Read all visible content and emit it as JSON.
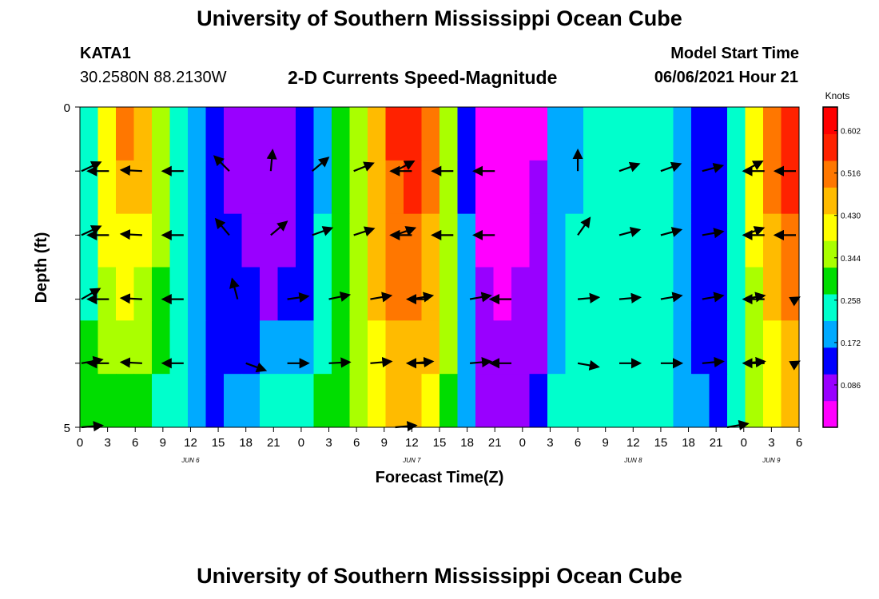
{
  "page": {
    "title_top": "University of Southern Mississippi Ocean Cube",
    "title_bottom": "University of Southern Mississippi Ocean Cube",
    "station_id": "KATA1",
    "station_coords": "30.2580N  88.2130W",
    "chart_heading": "2-D Currents Speed-Magnitude",
    "start_time_label": "Model Start Time",
    "start_time_value": "06/06/2021 Hour 21"
  },
  "chart_data": {
    "type": "heatmap",
    "title": "2-D Currents Speed-Magnitude",
    "xlabel": "Forecast Time(Z)",
    "ylabel": "Depth (ft)",
    "x_tick_labels": [
      "0",
      "3",
      "6",
      "9",
      "12",
      "15",
      "18",
      "21",
      "0",
      "3",
      "6",
      "9",
      "12",
      "15",
      "18",
      "21",
      "0",
      "3",
      "6",
      "9",
      "12",
      "15",
      "18",
      "21",
      "0",
      "3",
      "6"
    ],
    "day_labels": [
      {
        "label": "JUN 6",
        "index": 4
      },
      {
        "label": "JUN 7",
        "index": 12
      },
      {
        "label": "JUN 8",
        "index": 20
      },
      {
        "label": "JUN 9",
        "index": 25
      }
    ],
    "y_range": [
      0,
      5
    ],
    "y_tick_labels": [
      "0",
      "5"
    ],
    "colorbar": {
      "unit": "Knots",
      "ticks": [
        "0.086",
        "0.172",
        "0.258",
        "0.344",
        "0.430",
        "0.516",
        "0.602"
      ],
      "range": [
        0.0,
        0.65
      ],
      "colors": [
        "#ff00ff",
        "#9900ff",
        "#0000ff",
        "#00aaff",
        "#00ffcc",
        "#00dd00",
        "#aaff00",
        "#ffff00",
        "#ffbb00",
        "#ff7700",
        "#ff2200",
        "#ff0000"
      ]
    },
    "speed_rows": [
      [
        0.25,
        0.42,
        0.49,
        0.46,
        0.37,
        0.26,
        0.18,
        0.13,
        0.1,
        0.07,
        0.06,
        0.08,
        0.13,
        0.2,
        0.28,
        0.37,
        0.48,
        0.55,
        0.58,
        0.5,
        0.35,
        0.16,
        0.03,
        0.02,
        0.03,
        0.05,
        0.17,
        0.21,
        0.22,
        0.24,
        0.25,
        0.24,
        0.22,
        0.2,
        0.16,
        0.11,
        0.27,
        0.42,
        0.52,
        0.58
      ],
      [
        0.25,
        0.4,
        0.46,
        0.44,
        0.36,
        0.26,
        0.18,
        0.13,
        0.1,
        0.08,
        0.07,
        0.09,
        0.14,
        0.21,
        0.29,
        0.37,
        0.47,
        0.53,
        0.56,
        0.49,
        0.35,
        0.16,
        0.04,
        0.03,
        0.04,
        0.06,
        0.18,
        0.21,
        0.22,
        0.24,
        0.25,
        0.24,
        0.22,
        0.2,
        0.16,
        0.11,
        0.26,
        0.4,
        0.5,
        0.56
      ],
      [
        0.26,
        0.38,
        0.42,
        0.4,
        0.34,
        0.25,
        0.17,
        0.13,
        0.11,
        0.09,
        0.08,
        0.1,
        0.15,
        0.22,
        0.29,
        0.37,
        0.45,
        0.51,
        0.53,
        0.48,
        0.34,
        0.17,
        0.05,
        0.04,
        0.05,
        0.07,
        0.19,
        0.22,
        0.23,
        0.24,
        0.25,
        0.24,
        0.22,
        0.2,
        0.16,
        0.12,
        0.26,
        0.38,
        0.47,
        0.53
      ],
      [
        0.27,
        0.35,
        0.38,
        0.36,
        0.31,
        0.24,
        0.17,
        0.13,
        0.12,
        0.11,
        0.1,
        0.12,
        0.16,
        0.22,
        0.29,
        0.36,
        0.44,
        0.49,
        0.51,
        0.46,
        0.34,
        0.17,
        0.06,
        0.05,
        0.06,
        0.08,
        0.2,
        0.22,
        0.23,
        0.24,
        0.25,
        0.24,
        0.22,
        0.2,
        0.16,
        0.12,
        0.25,
        0.36,
        0.44,
        0.5
      ],
      [
        0.28,
        0.33,
        0.35,
        0.33,
        0.29,
        0.23,
        0.17,
        0.14,
        0.15,
        0.16,
        0.17,
        0.18,
        0.21,
        0.25,
        0.3,
        0.37,
        0.43,
        0.47,
        0.48,
        0.44,
        0.33,
        0.18,
        0.08,
        0.06,
        0.07,
        0.1,
        0.21,
        0.23,
        0.24,
        0.24,
        0.25,
        0.24,
        0.22,
        0.2,
        0.16,
        0.12,
        0.25,
        0.35,
        0.42,
        0.47
      ],
      [
        0.28,
        0.31,
        0.32,
        0.3,
        0.27,
        0.22,
        0.17,
        0.16,
        0.19,
        0.21,
        0.22,
        0.23,
        0.25,
        0.28,
        0.31,
        0.37,
        0.42,
        0.45,
        0.46,
        0.42,
        0.32,
        0.19,
        0.1,
        0.08,
        0.09,
        0.12,
        0.22,
        0.23,
        0.24,
        0.25,
        0.25,
        0.24,
        0.22,
        0.2,
        0.17,
        0.13,
        0.24,
        0.33,
        0.39,
        0.44
      ]
    ],
    "vectors": [
      {
        "t": 0,
        "d": 1,
        "angle": -25
      },
      {
        "t": 0.7,
        "d": 1.0,
        "angle": 180
      },
      {
        "t": 1.5,
        "d": 1.0,
        "angle": 183
      },
      {
        "t": 2.5,
        "d": 1.0,
        "angle": 180
      },
      {
        "t": 3.6,
        "d": 1.0,
        "angle": -135
      },
      {
        "t": 4.6,
        "d": 1.0,
        "angle": -85
      },
      {
        "t": 5.6,
        "d": 1.0,
        "angle": -40
      },
      {
        "t": 6.6,
        "d": 1.0,
        "angle": -22
      },
      {
        "t": 7.6,
        "d": 1.0,
        "angle": -28
      },
      {
        "t": 8.0,
        "d": 1.0,
        "angle": 180
      },
      {
        "t": 9.0,
        "d": 1.0,
        "angle": 180
      },
      {
        "t": 10.0,
        "d": 1.0,
        "angle": 180
      },
      {
        "t": 12.0,
        "d": 1.0,
        "angle": -90
      },
      {
        "t": 13.0,
        "d": 1.0,
        "angle": -20
      },
      {
        "t": 14.0,
        "d": 1.0,
        "angle": -20
      },
      {
        "t": 15.0,
        "d": 1.0,
        "angle": -15
      },
      {
        "t": 16.0,
        "d": 1.0,
        "angle": -28
      },
      {
        "t": 16.5,
        "d": 1.0,
        "angle": 180
      },
      {
        "t": 17.5,
        "d": 1.0,
        "angle": 180
      },
      {
        "t": 0,
        "d": 2,
        "angle": -25
      },
      {
        "t": 0.7,
        "d": 2.0,
        "angle": 180
      },
      {
        "t": 1.5,
        "d": 2.0,
        "angle": 183
      },
      {
        "t": 2.5,
        "d": 2.0,
        "angle": 180
      },
      {
        "t": 3.6,
        "d": 2.0,
        "angle": -130
      },
      {
        "t": 4.6,
        "d": 2.0,
        "angle": -40
      },
      {
        "t": 5.6,
        "d": 2.0,
        "angle": -20
      },
      {
        "t": 6.6,
        "d": 2.0,
        "angle": -18
      },
      {
        "t": 7.6,
        "d": 2.0,
        "angle": -20
      },
      {
        "t": 8.0,
        "d": 2.0,
        "angle": 180
      },
      {
        "t": 9.0,
        "d": 2.0,
        "angle": 180
      },
      {
        "t": 10.0,
        "d": 2.0,
        "angle": 180
      },
      {
        "t": 12.0,
        "d": 2.0,
        "angle": -55
      },
      {
        "t": 13.0,
        "d": 2.0,
        "angle": -15
      },
      {
        "t": 14.0,
        "d": 2.0,
        "angle": -15
      },
      {
        "t": 15.0,
        "d": 2.0,
        "angle": -10
      },
      {
        "t": 16.0,
        "d": 2.0,
        "angle": -20
      },
      {
        "t": 16.5,
        "d": 2.0,
        "angle": 180
      },
      {
        "t": 17.5,
        "d": 2.0,
        "angle": 180
      },
      {
        "t": 0,
        "d": 3,
        "angle": -30
      },
      {
        "t": 0.7,
        "d": 3.0,
        "angle": 180
      },
      {
        "t": 1.5,
        "d": 3.0,
        "angle": 183
      },
      {
        "t": 2.5,
        "d": 3.0,
        "angle": 180
      },
      {
        "t": 3.8,
        "d": 3.0,
        "angle": -105
      },
      {
        "t": 5.0,
        "d": 3.0,
        "angle": -8
      },
      {
        "t": 6.0,
        "d": 3.0,
        "angle": -12
      },
      {
        "t": 7.0,
        "d": 3.0,
        "angle": -10
      },
      {
        "t": 8.0,
        "d": 3.0,
        "angle": -10
      },
      {
        "t": 8.4,
        "d": 3.0,
        "angle": 180
      },
      {
        "t": 9.4,
        "d": 3.0,
        "angle": -10
      },
      {
        "t": 10.4,
        "d": 3.0,
        "angle": 180
      },
      {
        "t": 12.0,
        "d": 3.0,
        "angle": -5
      },
      {
        "t": 13.0,
        "d": 3.0,
        "angle": -5
      },
      {
        "t": 14.0,
        "d": 3.0,
        "angle": -10
      },
      {
        "t": 15.0,
        "d": 3.0,
        "angle": -10
      },
      {
        "t": 16.0,
        "d": 3.0,
        "angle": -10
      },
      {
        "t": 16.5,
        "d": 3.0,
        "angle": 180
      },
      {
        "t": 17.5,
        "d": 3.0,
        "angle": -5
      },
      {
        "t": 0,
        "d": 4,
        "angle": -10
      },
      {
        "t": 0.7,
        "d": 4.0,
        "angle": 180
      },
      {
        "t": 1.5,
        "d": 4.0,
        "angle": 183
      },
      {
        "t": 2.5,
        "d": 4.0,
        "angle": 180
      },
      {
        "t": 4.0,
        "d": 4.0,
        "angle": 20
      },
      {
        "t": 5.0,
        "d": 4.0,
        "angle": 0
      },
      {
        "t": 6.0,
        "d": 4.0,
        "angle": -3
      },
      {
        "t": 7.0,
        "d": 4.0,
        "angle": -5
      },
      {
        "t": 8.0,
        "d": 4.0,
        "angle": -5
      },
      {
        "t": 8.4,
        "d": 4.0,
        "angle": 180
      },
      {
        "t": 9.4,
        "d": 4.0,
        "angle": -5
      },
      {
        "t": 10.4,
        "d": 4.0,
        "angle": 180
      },
      {
        "t": 12.0,
        "d": 4.0,
        "angle": 10
      },
      {
        "t": 13.0,
        "d": 4.0,
        "angle": 0
      },
      {
        "t": 14.0,
        "d": 4.0,
        "angle": 0
      },
      {
        "t": 15.0,
        "d": 4.0,
        "angle": -5
      },
      {
        "t": 16.0,
        "d": 4.0,
        "angle": -5
      },
      {
        "t": 16.5,
        "d": 4.0,
        "angle": 180
      },
      {
        "t": 17.5,
        "d": 4.0,
        "angle": -5
      },
      {
        "t": 0,
        "d": 5,
        "angle": -5
      },
      {
        "t": 7.6,
        "d": 5.0,
        "angle": -5
      },
      {
        "t": 15.6,
        "d": 5.0,
        "angle": -10
      }
    ]
  }
}
